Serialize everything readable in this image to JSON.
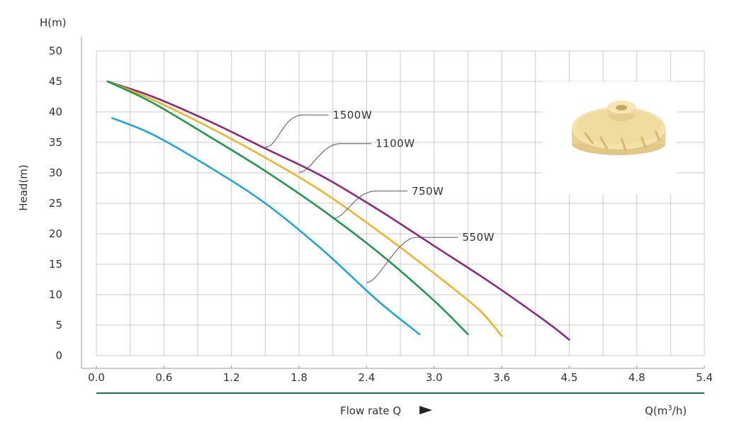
{
  "chart_data": {
    "type": "line",
    "ylabel_top": "H(m)",
    "ylabel": "Head(m)",
    "xlabel": "Flow rate Q",
    "xunit_prefix": "Q(m",
    "xunit_sup": "3",
    "xunit_suffix": "/h)",
    "x_tick_labels": [
      "0.0",
      "0.6",
      "1.2",
      "1.8",
      "2.4",
      "3.0",
      "3.6",
      "4.5",
      "4.8",
      "5.4"
    ],
    "y_ticks": [
      0,
      5,
      10,
      15,
      20,
      25,
      30,
      35,
      40,
      45,
      50
    ],
    "xlim": [
      0,
      5.4
    ],
    "ylim": [
      0,
      50
    ],
    "grid": true,
    "series": [
      {
        "name": "1500W",
        "color": "#8e2a7e",
        "x": [
          0.1,
          0.5,
          1.0,
          1.5,
          2.0,
          2.5,
          3.0,
          3.5,
          4.0,
          4.2
        ],
        "y": [
          45,
          42.5,
          38.5,
          34,
          29.5,
          24,
          18,
          12,
          5.5,
          2.6
        ]
      },
      {
        "name": "1100W",
        "color": "#f0b429",
        "x": [
          0.1,
          0.5,
          1.0,
          1.5,
          2.0,
          2.5,
          3.0,
          3.4,
          3.6
        ],
        "y": [
          45,
          42,
          37.5,
          32.5,
          27,
          20.5,
          13.5,
          7.5,
          3.2
        ]
      },
      {
        "name": "750W",
        "color": "#1d9a4e",
        "x": [
          0.1,
          0.5,
          1.0,
          1.5,
          2.0,
          2.5,
          3.0,
          3.3
        ],
        "y": [
          45,
          41.5,
          36,
          30.3,
          24,
          17,
          9,
          3.5
        ]
      },
      {
        "name": "550W",
        "color": "#1fa8d8",
        "x": [
          0.14,
          0.5,
          1.0,
          1.5,
          2.0,
          2.5,
          2.87
        ],
        "y": [
          39,
          36.3,
          31,
          25,
          17.5,
          9,
          3.5
        ]
      }
    ],
    "callouts": [
      {
        "series": "1500W",
        "anchor_x": 1.5,
        "anchor_y": 34.2,
        "text_x": 2.1,
        "text_y": 39.5
      },
      {
        "series": "1100W",
        "anchor_x": 1.8,
        "anchor_y": 30.1,
        "text_x": 2.48,
        "text_y": 34.8
      },
      {
        "series": "750W",
        "anchor_x": 2.1,
        "anchor_y": 22.5,
        "text_x": 2.8,
        "text_y": 27.0
      },
      {
        "series": "550W",
        "anchor_x": 2.4,
        "anchor_y": 12.0,
        "text_x": 3.25,
        "text_y": 19.4
      }
    ]
  },
  "image": {
    "description_icon": "impeller-icon",
    "color": "#f1dca0"
  }
}
